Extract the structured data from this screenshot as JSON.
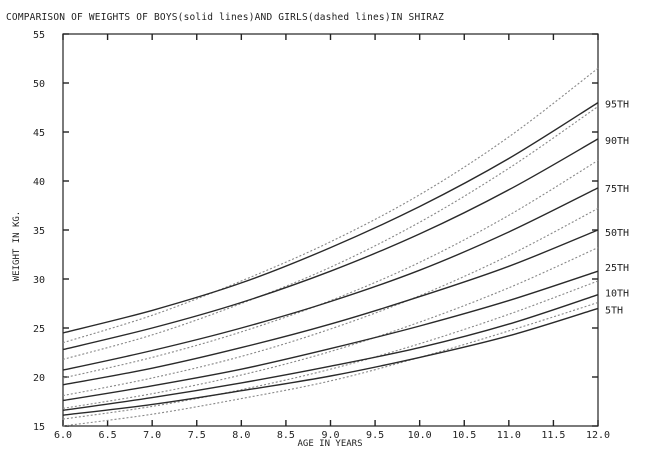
{
  "chart_data": {
    "type": "line",
    "title": "COMPARISON OF WEIGHTS OF BOYS(solid lines)AND GIRLS(dashed lines)IN SHIRAZ",
    "xlabel": "AGE IN YEARS",
    "ylabel": "WEIGHT IN KG.",
    "xlim": [
      6.0,
      12.0
    ],
    "ylim": [
      15,
      55
    ],
    "x_ticks": [
      6.0,
      6.5,
      7.0,
      7.5,
      8.0,
      8.5,
      9.0,
      9.5,
      10.0,
      10.5,
      11.0,
      11.5,
      12.0
    ],
    "x_tick_labels": [
      "6.0",
      "6.5",
      "7.0",
      "7.5",
      "8.0",
      "8.5",
      "9.0",
      "9.5",
      "10.0",
      "10.5",
      "11.0",
      "11.5",
      "12.0"
    ],
    "y_ticks": [
      15,
      20,
      25,
      30,
      35,
      40,
      45,
      50,
      55
    ],
    "y_tick_labels": [
      "15",
      "20",
      "25",
      "30",
      "35",
      "40",
      "45",
      "50",
      "55"
    ],
    "x": [
      6.0,
      7.0,
      8.0,
      9.0,
      10.0,
      11.0,
      12.0
    ],
    "percentile_labels": [
      {
        "text": "95TH",
        "y": 47.9
      },
      {
        "text": "90TH",
        "y": 44.2
      },
      {
        "text": "75TH",
        "y": 39.3
      },
      {
        "text": "50TH",
        "y": 34.8
      },
      {
        "text": "25TH",
        "y": 31.2
      },
      {
        "text": "10TH",
        "y": 28.6
      },
      {
        "text": "5TH",
        "y": 26.9
      }
    ],
    "series": [
      {
        "group": "boys",
        "percentile": "95TH",
        "values": [
          24.5,
          26.8,
          29.6,
          33.2,
          37.4,
          42.3,
          48.0
        ]
      },
      {
        "group": "boys",
        "percentile": "90TH",
        "values": [
          22.8,
          25.0,
          27.6,
          30.8,
          34.6,
          39.1,
          44.3
        ]
      },
      {
        "group": "boys",
        "percentile": "75TH",
        "values": [
          20.7,
          22.7,
          25.0,
          27.7,
          30.9,
          34.8,
          39.3
        ]
      },
      {
        "group": "boys",
        "percentile": "50TH",
        "values": [
          19.2,
          20.9,
          23.0,
          25.4,
          28.2,
          31.3,
          35.0
        ]
      },
      {
        "group": "boys",
        "percentile": "25TH",
        "values": [
          17.6,
          19.1,
          20.8,
          22.9,
          25.2,
          27.8,
          30.8
        ]
      },
      {
        "group": "boys",
        "percentile": "10TH",
        "values": [
          16.6,
          17.9,
          19.4,
          21.1,
          23.0,
          25.4,
          28.4
        ]
      },
      {
        "group": "boys",
        "percentile": "5TH",
        "values": [
          16.1,
          17.2,
          18.6,
          20.1,
          22.0,
          24.2,
          27.0
        ]
      },
      {
        "group": "girls",
        "percentile": "95TH",
        "values": [
          23.5,
          26.3,
          29.8,
          33.8,
          38.6,
          44.5,
          51.5
        ]
      },
      {
        "group": "girls",
        "percentile": "90TH",
        "values": [
          21.8,
          24.3,
          27.5,
          31.2,
          35.8,
          41.3,
          47.6
        ]
      },
      {
        "group": "girls",
        "percentile": "75TH",
        "values": [
          19.9,
          22.0,
          24.6,
          27.8,
          31.7,
          36.5,
          42.1
        ]
      },
      {
        "group": "girls",
        "percentile": "50TH",
        "values": [
          18.1,
          19.9,
          22.1,
          24.9,
          28.3,
          32.4,
          37.2
        ]
      },
      {
        "group": "girls",
        "percentile": "25TH",
        "values": [
          16.8,
          18.3,
          20.2,
          22.6,
          25.6,
          29.1,
          33.2
        ]
      },
      {
        "group": "girls",
        "percentile": "10TH",
        "values": [
          15.7,
          17.0,
          18.7,
          20.8,
          23.4,
          26.4,
          29.8
        ]
      },
      {
        "group": "girls",
        "percentile": "5TH",
        "values": [
          15.0,
          16.2,
          17.8,
          19.6,
          22.0,
          24.7,
          27.6
        ]
      }
    ]
  }
}
